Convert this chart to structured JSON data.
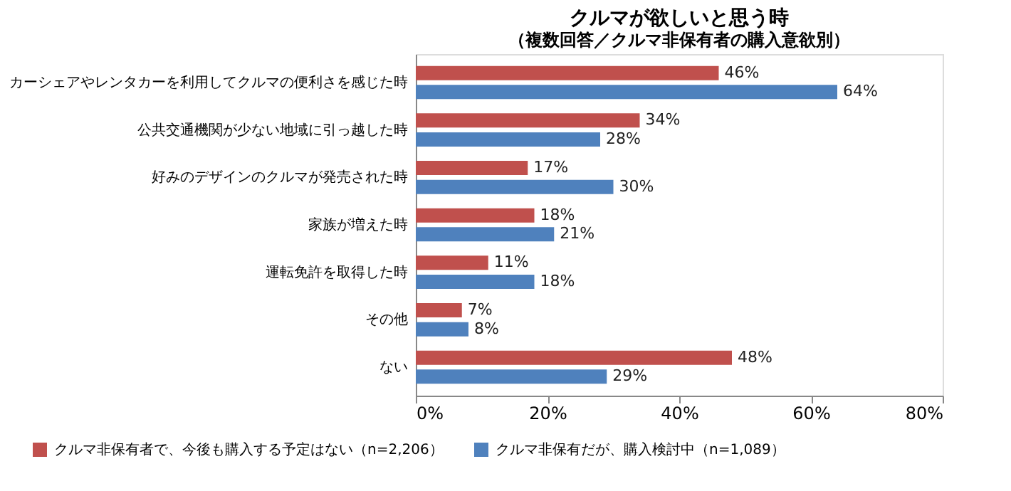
{
  "chart_data": {
    "type": "bar",
    "orientation": "horizontal",
    "title": "クルマが欲しいと思う時",
    "subtitle": "（複数回答／クルマ非保有者の購入意欲別）",
    "categories": [
      "カーシェアやレンタカーを利用してクルマの便利さを感じた時",
      "公共交通機関が少ない地域に引っ越した時",
      "好みのデザインのクルマが発売された時",
      "家族が増えた時",
      "運転免許を取得した時",
      "その他",
      "ない"
    ],
    "series": [
      {
        "name": "クルマ非保有者で、今後も購入する予定はない（n=2,206）",
        "color": "#c0504d",
        "values": [
          46,
          34,
          17,
          18,
          11,
          7,
          48
        ],
        "value_labels": [
          "46%",
          "34%",
          "17%",
          "18%",
          "11%",
          "7%",
          "48%"
        ]
      },
      {
        "name": "クルマ非保有だが、購入検討中（n=1,089）",
        "color": "#4f81bd",
        "values": [
          64,
          28,
          30,
          21,
          18,
          8,
          29
        ],
        "value_labels": [
          "64%",
          "28%",
          "30%",
          "21%",
          "18%",
          "8%",
          "29%"
        ]
      }
    ],
    "xlim": [
      0,
      80
    ],
    "xticks": [
      {
        "value": 0,
        "label": "0%"
      },
      {
        "value": 20,
        "label": "20%"
      },
      {
        "value": 40,
        "label": "40%"
      },
      {
        "value": 60,
        "label": "60%"
      },
      {
        "value": 80,
        "label": "80%"
      }
    ],
    "grid": false,
    "legend": "bottom"
  }
}
